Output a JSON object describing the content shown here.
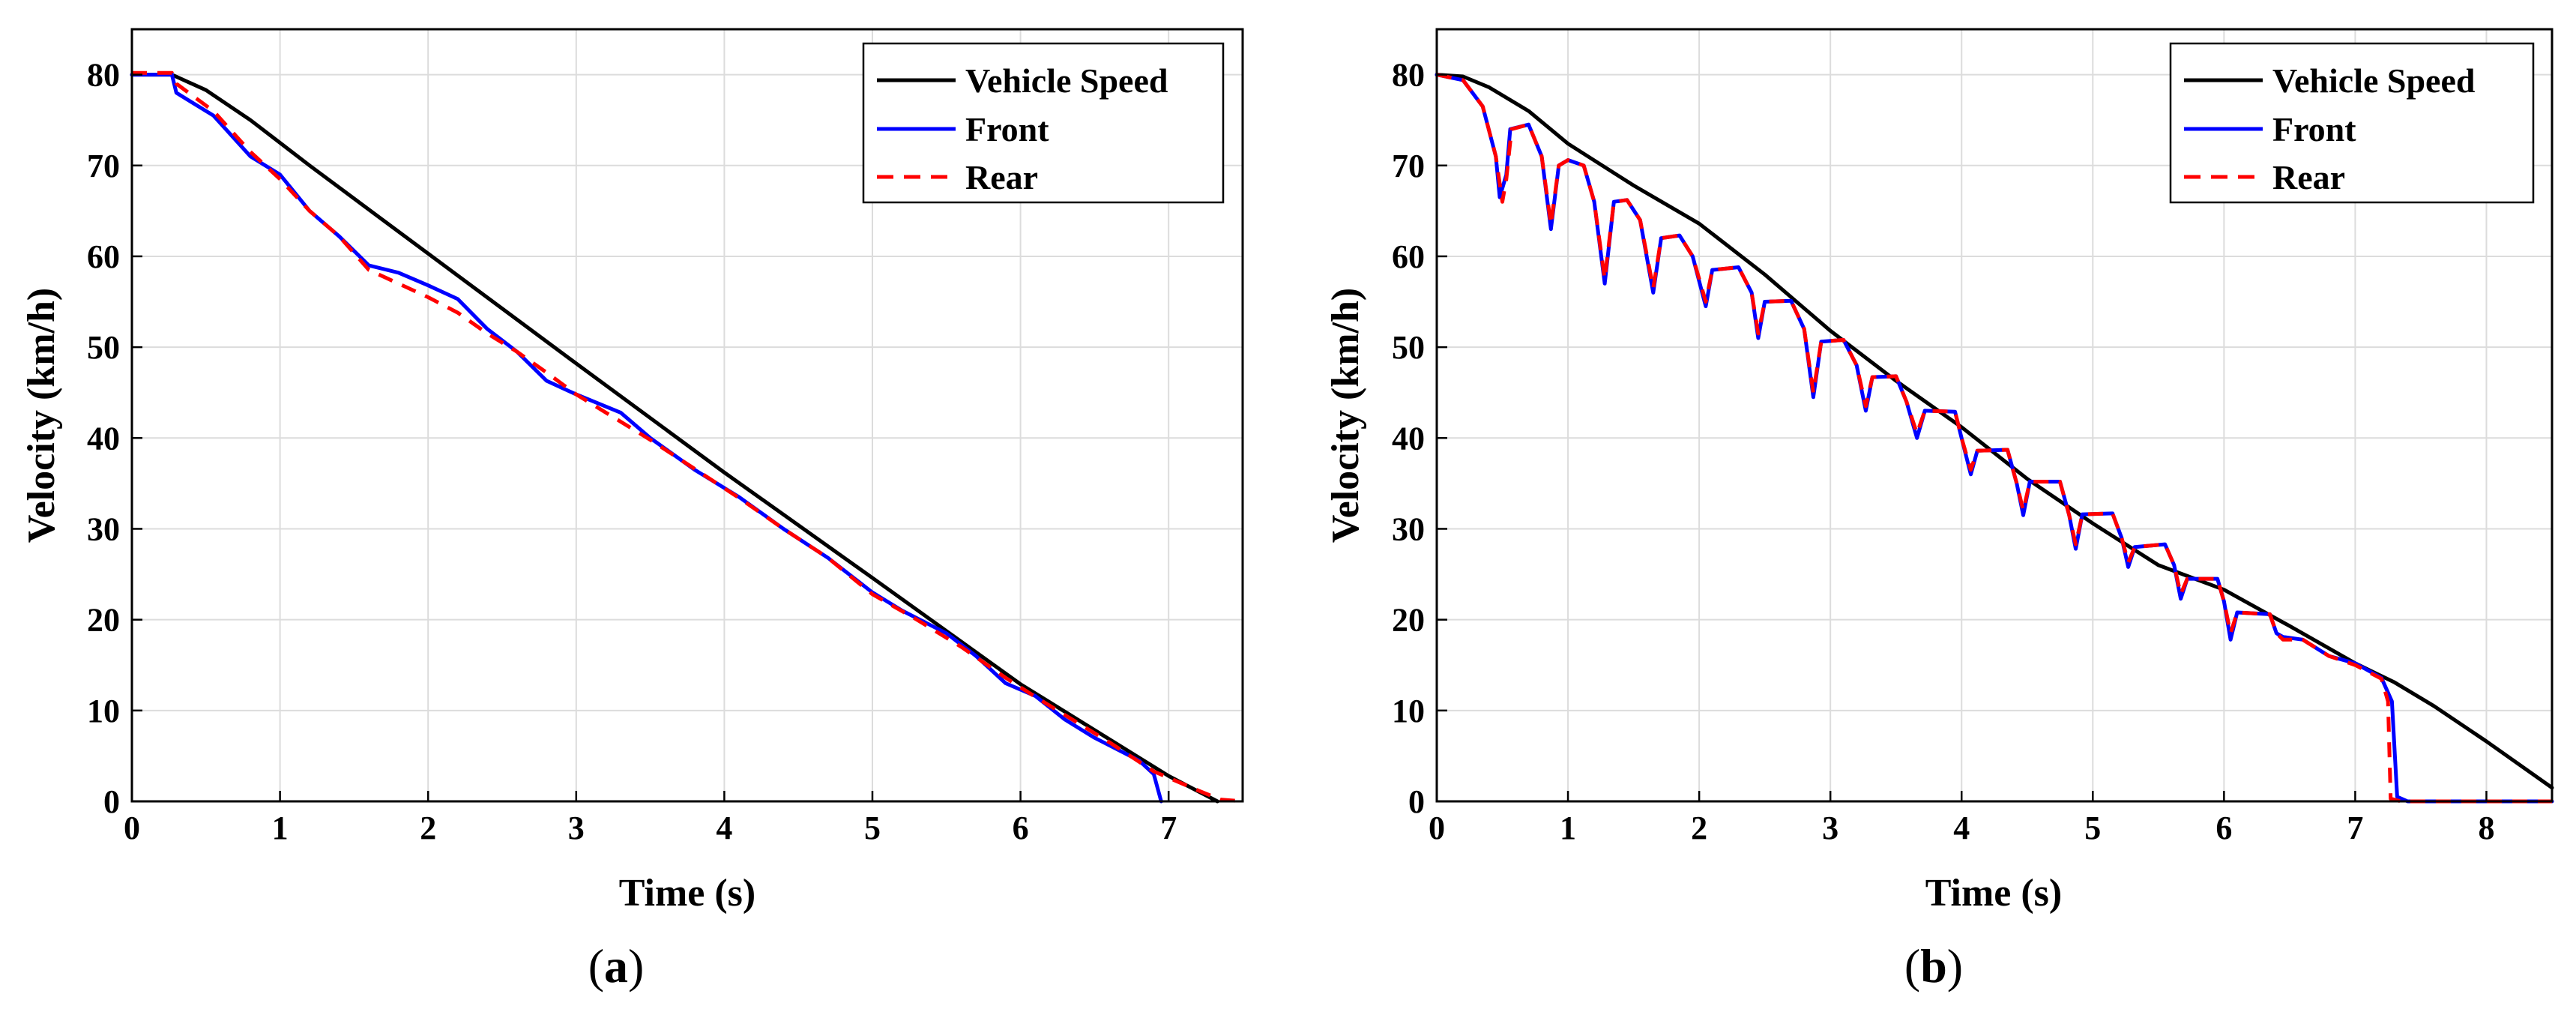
{
  "chart_data": [
    {
      "type": "line",
      "caption_open": "(",
      "caption_letter": "a",
      "caption_close": ")",
      "xlabel": "Time (s)",
      "ylabel": "Velocity (km/h)",
      "xlim": [
        0,
        7.5
      ],
      "ylim": [
        0,
        85
      ],
      "xticks": [
        0,
        1,
        2,
        3,
        4,
        5,
        6,
        7
      ],
      "yticks": [
        0,
        10,
        20,
        30,
        40,
        50,
        60,
        70,
        80
      ],
      "grid": true,
      "legend_position": "top-right",
      "series": [
        {
          "name": "Vehicle Speed",
          "color": "#000000",
          "style": "solid",
          "points": [
            [
              0,
              80
            ],
            [
              0.27,
              80
            ],
            [
              0.5,
              78.3
            ],
            [
              0.8,
              75
            ],
            [
              1.2,
              70
            ],
            [
              2,
              60.3
            ],
            [
              3,
              48.2
            ],
            [
              4,
              36.2
            ],
            [
              5,
              24.6
            ],
            [
              6,
              12.9
            ],
            [
              7,
              2.8
            ],
            [
              7.2,
              1.1
            ],
            [
              7.33,
              0
            ]
          ]
        },
        {
          "name": "Front",
          "color": "#0000ff",
          "style": "solid",
          "points": [
            [
              0,
              80
            ],
            [
              0.27,
              80
            ],
            [
              0.3,
              78
            ],
            [
              0.55,
              75.5
            ],
            [
              0.8,
              71
            ],
            [
              1,
              69
            ],
            [
              1.2,
              65
            ],
            [
              1.4,
              62.2
            ],
            [
              1.6,
              59
            ],
            [
              1.8,
              58.2
            ],
            [
              2,
              56.8
            ],
            [
              2.2,
              55.3
            ],
            [
              2.4,
              52
            ],
            [
              2.6,
              49.5
            ],
            [
              2.8,
              46.3
            ],
            [
              3,
              44.8
            ],
            [
              3.3,
              42.8
            ],
            [
              3.5,
              40
            ],
            [
              3.8,
              36.5
            ],
            [
              4.1,
              33.5
            ],
            [
              4.4,
              30
            ],
            [
              4.7,
              26.8
            ],
            [
              5,
              23
            ],
            [
              5.2,
              21
            ],
            [
              5.5,
              18.5
            ],
            [
              5.7,
              16
            ],
            [
              5.9,
              13
            ],
            [
              6.1,
              11.6
            ],
            [
              6.3,
              9
            ],
            [
              6.5,
              7
            ],
            [
              6.8,
              4.5
            ],
            [
              6.9,
              3
            ],
            [
              6.95,
              0
            ]
          ]
        },
        {
          "name": "Rear",
          "color": "#ff0000",
          "style": "dashed",
          "points": [
            [
              0,
              80.2
            ],
            [
              0.27,
              80.2
            ],
            [
              0.3,
              79
            ],
            [
              0.55,
              76
            ],
            [
              0.8,
              71.5
            ],
            [
              1,
              68.5
            ],
            [
              1.2,
              65
            ],
            [
              1.4,
              62.2
            ],
            [
              1.6,
              58.5
            ],
            [
              1.8,
              57
            ],
            [
              2,
              55.5
            ],
            [
              2.2,
              53.8
            ],
            [
              2.4,
              51.5
            ],
            [
              2.6,
              49.5
            ],
            [
              2.8,
              47.2
            ],
            [
              3,
              44.8
            ],
            [
              3.3,
              41.8
            ],
            [
              3.5,
              39.8
            ],
            [
              3.8,
              36.6
            ],
            [
              4.1,
              33.4
            ],
            [
              4.4,
              30
            ],
            [
              4.7,
              26.8
            ],
            [
              5,
              22.8
            ],
            [
              5.3,
              20
            ],
            [
              5.6,
              17
            ],
            [
              5.9,
              13.6
            ],
            [
              6.1,
              11.5
            ],
            [
              6.3,
              9.5
            ],
            [
              6.6,
              6.5
            ],
            [
              6.9,
              3.3
            ],
            [
              7.2,
              1.2
            ],
            [
              7.35,
              0.2
            ],
            [
              7.5,
              0
            ]
          ]
        }
      ]
    },
    {
      "type": "line",
      "caption_open": "(",
      "caption_letter": "b",
      "caption_close": ")",
      "xlabel": "Time (s)",
      "ylabel": "Velocity (km/h)",
      "xlim": [
        0,
        8.5
      ],
      "ylim": [
        0,
        85
      ],
      "xticks": [
        0,
        1,
        2,
        3,
        4,
        5,
        6,
        7,
        8
      ],
      "yticks": [
        0,
        10,
        20,
        30,
        40,
        50,
        60,
        70,
        80
      ],
      "grid": true,
      "legend_position": "top-right",
      "series": [
        {
          "name": "Vehicle Speed",
          "color": "#000000",
          "style": "solid",
          "points": [
            [
              0,
              80
            ],
            [
              0.2,
              79.8
            ],
            [
              0.4,
              78.6
            ],
            [
              0.7,
              76
            ],
            [
              1,
              72.4
            ],
            [
              1.5,
              67.8
            ],
            [
              2,
              63.6
            ],
            [
              2.5,
              58
            ],
            [
              3,
              51.8
            ],
            [
              3.5,
              46.3
            ],
            [
              4,
              41.2
            ],
            [
              4.5,
              35.5
            ],
            [
              5,
              30.6
            ],
            [
              5.5,
              26
            ],
            [
              6,
              23.3
            ],
            [
              6.5,
              19.3
            ],
            [
              7,
              15.2
            ],
            [
              7.3,
              13.1
            ],
            [
              7.6,
              10.5
            ],
            [
              8,
              6.6
            ],
            [
              8.5,
              1.5
            ]
          ]
        },
        {
          "name": "Front",
          "color": "#0000ff",
          "style": "solid",
          "points": [
            [
              0,
              80
            ],
            [
              0.2,
              79.4
            ],
            [
              0.35,
              76.5
            ],
            [
              0.45,
              71
            ],
            [
              0.48,
              66.5
            ],
            [
              0.53,
              69
            ],
            [
              0.56,
              74
            ],
            [
              0.7,
              74.5
            ],
            [
              0.8,
              71
            ],
            [
              0.87,
              63
            ],
            [
              0.93,
              70
            ],
            [
              1,
              70.6
            ],
            [
              1.12,
              70
            ],
            [
              1.2,
              66
            ],
            [
              1.28,
              57
            ],
            [
              1.35,
              66
            ],
            [
              1.45,
              66.2
            ],
            [
              1.55,
              64
            ],
            [
              1.65,
              56
            ],
            [
              1.71,
              62
            ],
            [
              1.85,
              62.3
            ],
            [
              1.95,
              60
            ],
            [
              2.05,
              54.5
            ],
            [
              2.1,
              58.5
            ],
            [
              2.3,
              58.8
            ],
            [
              2.4,
              56
            ],
            [
              2.45,
              51
            ],
            [
              2.5,
              55
            ],
            [
              2.7,
              55.1
            ],
            [
              2.8,
              52
            ],
            [
              2.87,
              44.5
            ],
            [
              2.93,
              50.6
            ],
            [
              3.1,
              50.8
            ],
            [
              3.2,
              48
            ],
            [
              3.27,
              43
            ],
            [
              3.32,
              46.7
            ],
            [
              3.5,
              46.8
            ],
            [
              3.58,
              44
            ],
            [
              3.66,
              40
            ],
            [
              3.72,
              43
            ],
            [
              3.95,
              42.9
            ],
            [
              4,
              40
            ],
            [
              4.07,
              36
            ],
            [
              4.12,
              38.6
            ],
            [
              4.35,
              38.7
            ],
            [
              4.42,
              35
            ],
            [
              4.47,
              31.5
            ],
            [
              4.52,
              35.2
            ],
            [
              4.75,
              35.2
            ],
            [
              4.82,
              31.5
            ],
            [
              4.87,
              27.8
            ],
            [
              4.92,
              31.6
            ],
            [
              5.15,
              31.7
            ],
            [
              5.22,
              29
            ],
            [
              5.27,
              25.8
            ],
            [
              5.32,
              28
            ],
            [
              5.55,
              28.3
            ],
            [
              5.62,
              26
            ],
            [
              5.67,
              22.3
            ],
            [
              5.72,
              24.5
            ],
            [
              5.95,
              24.5
            ],
            [
              6,
              22
            ],
            [
              6.05,
              17.8
            ],
            [
              6.1,
              20.8
            ],
            [
              6.35,
              20.6
            ],
            [
              6.4,
              18.5
            ],
            [
              6.45,
              18.1
            ],
            [
              6.6,
              17.8
            ],
            [
              6.8,
              16
            ],
            [
              7,
              15.2
            ],
            [
              7.2,
              13.6
            ],
            [
              7.28,
              11
            ],
            [
              7.32,
              0.5
            ],
            [
              7.4,
              0
            ],
            [
              8.5,
              0
            ]
          ]
        },
        {
          "name": "Rear",
          "color": "#ff0000",
          "style": "dashed",
          "points": [
            [
              0,
              80
            ],
            [
              0.2,
              79.4
            ],
            [
              0.35,
              76.5
            ],
            [
              0.45,
              71
            ],
            [
              0.5,
              66
            ],
            [
              0.53,
              68.5
            ],
            [
              0.57,
              74
            ],
            [
              0.7,
              74.5
            ],
            [
              0.8,
              71
            ],
            [
              0.87,
              63.5
            ],
            [
              0.93,
              70
            ],
            [
              1,
              70.6
            ],
            [
              1.12,
              70
            ],
            [
              1.2,
              66
            ],
            [
              1.28,
              57.5
            ],
            [
              1.35,
              66
            ],
            [
              1.45,
              66.2
            ],
            [
              1.55,
              64
            ],
            [
              1.65,
              56.5
            ],
            [
              1.71,
              62
            ],
            [
              1.85,
              62.3
            ],
            [
              1.95,
              60
            ],
            [
              2.05,
              55
            ],
            [
              2.1,
              58.5
            ],
            [
              2.3,
              58.8
            ],
            [
              2.4,
              56
            ],
            [
              2.45,
              51.5
            ],
            [
              2.5,
              55
            ],
            [
              2.7,
              55.1
            ],
            [
              2.8,
              52
            ],
            [
              2.87,
              45
            ],
            [
              2.93,
              50.6
            ],
            [
              3.1,
              50.8
            ],
            [
              3.2,
              48
            ],
            [
              3.27,
              43.5
            ],
            [
              3.32,
              46.7
            ],
            [
              3.5,
              46.8
            ],
            [
              3.58,
              44
            ],
            [
              3.66,
              40.5
            ],
            [
              3.72,
              43
            ],
            [
              3.95,
              42.9
            ],
            [
              4,
              40
            ],
            [
              4.07,
              36.5
            ],
            [
              4.12,
              38.6
            ],
            [
              4.35,
              38.7
            ],
            [
              4.42,
              35
            ],
            [
              4.47,
              32
            ],
            [
              4.52,
              35.2
            ],
            [
              4.75,
              35.2
            ],
            [
              4.82,
              31.5
            ],
            [
              4.87,
              28.3
            ],
            [
              4.92,
              31.6
            ],
            [
              5.15,
              31.7
            ],
            [
              5.22,
              29
            ],
            [
              5.27,
              26.3
            ],
            [
              5.32,
              28
            ],
            [
              5.55,
              28.3
            ],
            [
              5.62,
              26
            ],
            [
              5.67,
              22.8
            ],
            [
              5.72,
              24.5
            ],
            [
              5.95,
              24.5
            ],
            [
              6,
              22
            ],
            [
              6.05,
              18.5
            ],
            [
              6.1,
              20.8
            ],
            [
              6.35,
              20.6
            ],
            [
              6.4,
              18.5
            ],
            [
              6.45,
              17.8
            ],
            [
              6.6,
              17.8
            ],
            [
              6.8,
              16
            ],
            [
              7,
              15
            ],
            [
              7.2,
              13.5
            ],
            [
              7.25,
              11
            ],
            [
              7.27,
              0.3
            ],
            [
              7.35,
              0
            ],
            [
              8.5,
              0
            ]
          ]
        }
      ]
    }
  ]
}
